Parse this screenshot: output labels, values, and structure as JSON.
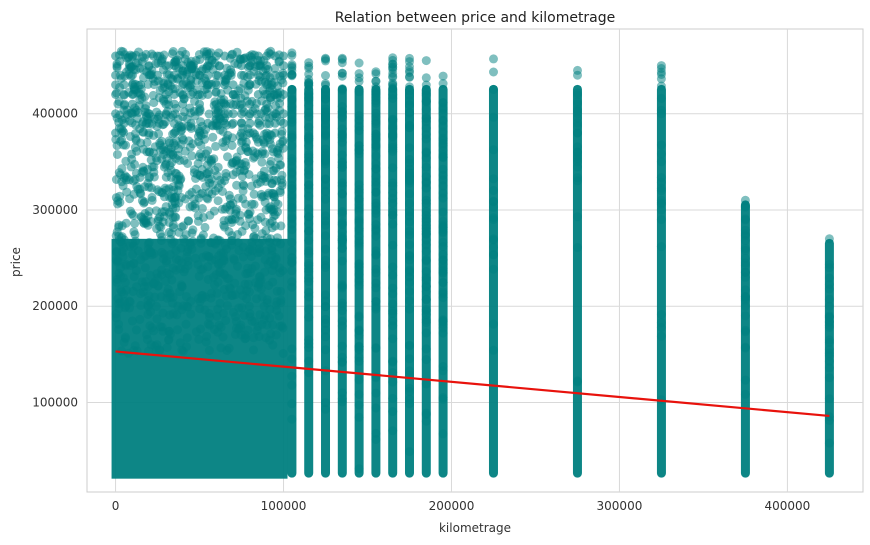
{
  "chart_data": {
    "type": "scatter",
    "title": "Relation between price and kilometrage",
    "xlabel": "kilometrage",
    "ylabel": "price",
    "xlim": [
      -17000,
      445000
    ],
    "ylim": [
      7000,
      488000
    ],
    "x_ticks": [
      0,
      100000,
      200000,
      300000,
      400000
    ],
    "x_tick_labels": [
      "0",
      "100000",
      "200000",
      "300000",
      "400000"
    ],
    "y_ticks": [
      100000,
      200000,
      300000,
      400000
    ],
    "y_tick_labels": [
      "100000",
      "200000",
      "300000",
      "400000"
    ],
    "grid": true,
    "legend": "none",
    "colors": {
      "points": "#008080",
      "regression": "#e8120c",
      "grid": "#d9d9d9",
      "background": "#ffffff"
    },
    "dense_region": {
      "x_range": [
        0,
        100000
      ],
      "y_range": [
        25000,
        465000
      ]
    },
    "columns": [
      {
        "x": 105000,
        "y_min": 25000,
        "y_max": 465000
      },
      {
        "x": 115000,
        "y_min": 25000,
        "y_max": 460000
      },
      {
        "x": 125000,
        "y_min": 25000,
        "y_max": 460000
      },
      {
        "x": 135000,
        "y_min": 25000,
        "y_max": 460000
      },
      {
        "x": 145000,
        "y_min": 25000,
        "y_max": 455000
      },
      {
        "x": 155000,
        "y_min": 25000,
        "y_max": 455000
      },
      {
        "x": 165000,
        "y_min": 25000,
        "y_max": 465000
      },
      {
        "x": 175000,
        "y_min": 25000,
        "y_max": 460000
      },
      {
        "x": 185000,
        "y_min": 25000,
        "y_max": 460000
      },
      {
        "x": 195000,
        "y_min": 25000,
        "y_max": 440000
      },
      {
        "x": 225000,
        "y_min": 25000,
        "y_max": 465000
      },
      {
        "x": 275000,
        "y_min": 25000,
        "y_max": 445000
      },
      {
        "x": 325000,
        "y_min": 25000,
        "y_max": 450000
      },
      {
        "x": 375000,
        "y_min": 25000,
        "y_max": 310000
      },
      {
        "x": 425000,
        "y_min": 25000,
        "y_max": 270000
      }
    ],
    "sparse_points": [
      [
        275000,
        445000
      ],
      [
        275000,
        440000
      ],
      [
        275000,
        410000
      ],
      [
        275000,
        400000
      ],
      [
        275000,
        380000
      ],
      [
        275000,
        360000
      ],
      [
        275000,
        350000
      ],
      [
        325000,
        450000
      ],
      [
        325000,
        400000
      ],
      [
        325000,
        350000
      ],
      [
        325000,
        320000
      ],
      [
        325000,
        310000
      ],
      [
        325000,
        300000
      ],
      [
        325000,
        290000
      ],
      [
        375000,
        310000
      ],
      [
        375000,
        275000
      ],
      [
        375000,
        260000
      ],
      [
        375000,
        245000
      ],
      [
        375000,
        235000
      ],
      [
        375000,
        230000
      ],
      [
        375000,
        210000
      ],
      [
        375000,
        200000
      ],
      [
        375000,
        190000
      ],
      [
        375000,
        175000
      ],
      [
        425000,
        270000
      ],
      [
        425000,
        240000
      ],
      [
        425000,
        200000
      ],
      [
        425000,
        190000
      ],
      [
        425000,
        180000
      ],
      [
        425000,
        165000
      ],
      [
        425000,
        155000
      ]
    ],
    "regression_line": {
      "x": [
        0,
        425000
      ],
      "y": [
        153000,
        86000
      ]
    }
  }
}
